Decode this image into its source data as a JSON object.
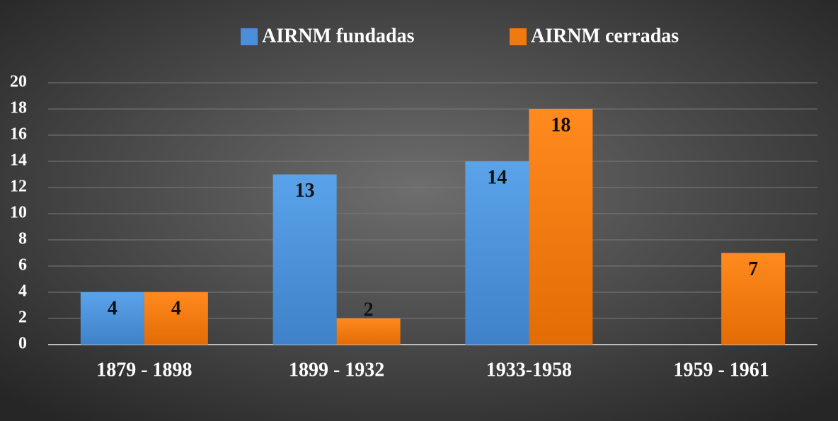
{
  "chart_data": {
    "type": "bar",
    "categories": [
      "1879 - 1898",
      "1899 - 1932",
      "1933-1958",
      "1959 - 1961"
    ],
    "series": [
      {
        "name": "AIRNM fundadas",
        "color": "#4a90d9",
        "values": [
          4,
          13,
          14,
          null
        ]
      },
      {
        "name": "AIRNM cerradas",
        "color": "#f07a10",
        "values": [
          4,
          2,
          18,
          7
        ]
      }
    ],
    "ylim": [
      0,
      20
    ],
    "yticks": [
      0,
      2,
      4,
      6,
      8,
      10,
      12,
      14,
      16,
      18,
      20
    ],
    "grid": true,
    "legend": "top"
  }
}
